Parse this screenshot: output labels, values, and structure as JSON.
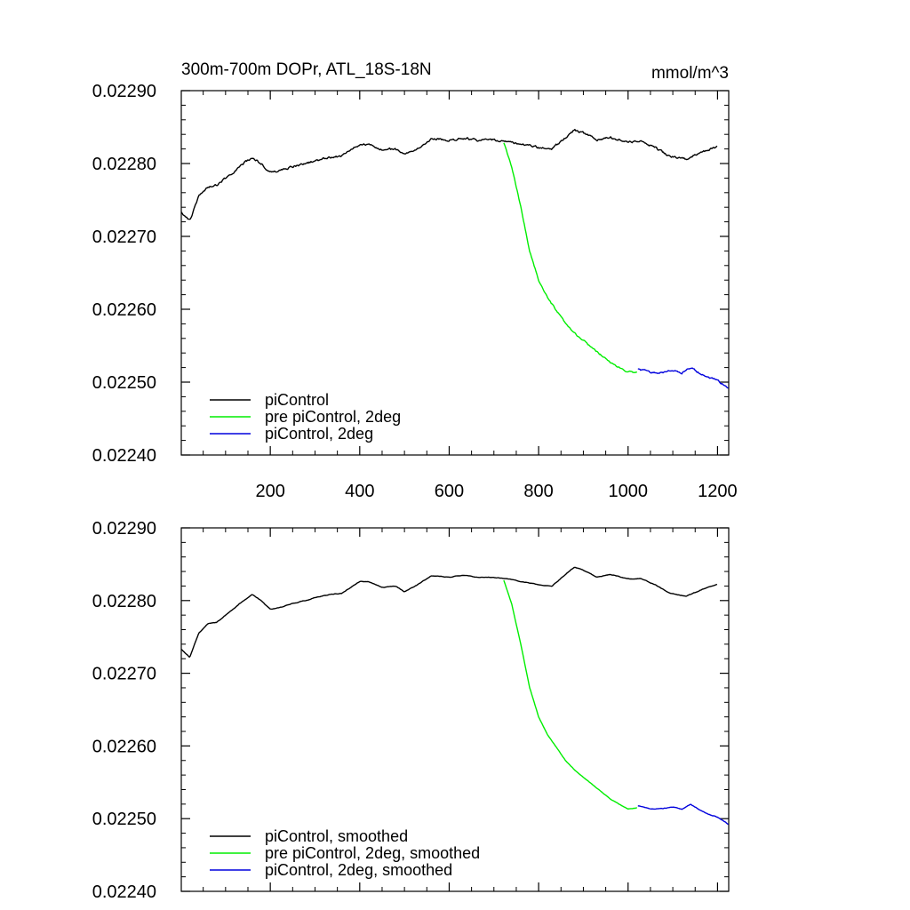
{
  "chart_data": [
    {
      "type": "line",
      "title": "300m-700m DOPr, ATL_18S-18N",
      "units": "mmol/m^3",
      "xlim": [
        1,
        1225
      ],
      "ylim": [
        0.0224,
        0.0229
      ],
      "x_ticks": [
        200,
        400,
        600,
        800,
        1000,
        1200
      ],
      "x_tick_labels": [
        "200",
        "400",
        "600",
        "800",
        "1000",
        "1200"
      ],
      "y_ticks": [
        0.0224,
        0.0225,
        0.0226,
        0.0227,
        0.0228,
        0.0229
      ],
      "y_tick_labels": [
        "0.02240",
        "0.02250",
        "0.02260",
        "0.02270",
        "0.02280",
        "0.02290"
      ],
      "grid": false,
      "legend_position": "bottom-left",
      "series": [
        {
          "name": "piControl",
          "color": "#000000",
          "noise": 1.2e-06,
          "x": [
            1,
            20,
            40,
            60,
            80,
            100,
            120,
            140,
            160,
            180,
            200,
            220,
            250,
            280,
            300,
            330,
            360,
            400,
            420,
            450,
            480,
            500,
            530,
            560,
            600,
            630,
            660,
            700,
            730,
            760,
            800,
            830,
            860,
            880,
            900,
            930,
            960,
            1000,
            1030,
            1060,
            1090,
            1110,
            1130,
            1160,
            1200
          ],
          "y": [
            0.022733,
            0.022722,
            0.022755,
            0.022768,
            0.02277,
            0.02278,
            0.02279,
            0.0228,
            0.022808,
            0.0228,
            0.022788,
            0.02279,
            0.022796,
            0.0228,
            0.022804,
            0.022808,
            0.02281,
            0.022826,
            0.022826,
            0.022818,
            0.02282,
            0.022812,
            0.022822,
            0.022834,
            0.022832,
            0.022835,
            0.022832,
            0.022832,
            0.02283,
            0.022826,
            0.022822,
            0.02282,
            0.022836,
            0.022846,
            0.022842,
            0.022832,
            0.022836,
            0.02283,
            0.02283,
            0.022822,
            0.022811,
            0.022808,
            0.022806,
            0.022814,
            0.022823
          ]
        },
        {
          "name": "pre piControl, 2deg",
          "color": "#00ee00",
          "noise": 9e-07,
          "x": [
            722,
            740,
            760,
            780,
            800,
            820,
            840,
            860,
            880,
            900,
            920,
            940,
            960,
            980,
            1000,
            1020
          ],
          "y": [
            0.022828,
            0.022795,
            0.02274,
            0.02268,
            0.02264,
            0.022615,
            0.022598,
            0.02258,
            0.022567,
            0.022557,
            0.022547,
            0.022537,
            0.022527,
            0.02252,
            0.022513,
            0.022515
          ]
        },
        {
          "name": "piControl, 2deg",
          "color": "#0000dd",
          "noise": 1e-06,
          "x": [
            1022,
            1040,
            1060,
            1080,
            1100,
            1120,
            1140,
            1160,
            1180,
            1200,
            1225
          ],
          "y": [
            0.022518,
            0.022515,
            0.022513,
            0.022514,
            0.022516,
            0.022513,
            0.02252,
            0.022512,
            0.022506,
            0.022502,
            0.022492
          ]
        }
      ]
    },
    {
      "type": "line",
      "xlim": [
        1,
        1225
      ],
      "ylim": [
        0.0224,
        0.0229
      ],
      "x_ticks": [
        200,
        400,
        600,
        800,
        1000,
        1200
      ],
      "y_ticks": [
        0.0224,
        0.0225,
        0.0226,
        0.0227,
        0.0228,
        0.0229
      ],
      "y_tick_labels": [
        "0.02240",
        "0.02250",
        "0.02260",
        "0.02270",
        "0.02280",
        "0.02290"
      ],
      "grid": false,
      "legend_position": "bottom-left",
      "series": [
        {
          "name": "piControl, smoothed",
          "color": "#000000",
          "noise": 3e-07,
          "x": [
            1,
            20,
            40,
            60,
            80,
            100,
            120,
            140,
            160,
            180,
            200,
            220,
            250,
            280,
            300,
            330,
            360,
            400,
            420,
            450,
            480,
            500,
            530,
            560,
            600,
            630,
            660,
            700,
            730,
            760,
            800,
            830,
            860,
            880,
            900,
            930,
            960,
            1000,
            1030,
            1060,
            1090,
            1110,
            1130,
            1160,
            1200
          ],
          "y": [
            0.022733,
            0.022722,
            0.022755,
            0.022768,
            0.02277,
            0.02278,
            0.02279,
            0.0228,
            0.022808,
            0.0228,
            0.022788,
            0.02279,
            0.022796,
            0.0228,
            0.022804,
            0.022808,
            0.02281,
            0.022826,
            0.022826,
            0.022818,
            0.02282,
            0.022812,
            0.022822,
            0.022834,
            0.022832,
            0.022835,
            0.022832,
            0.022832,
            0.02283,
            0.022826,
            0.022822,
            0.02282,
            0.022836,
            0.022846,
            0.022842,
            0.022832,
            0.022836,
            0.02283,
            0.02283,
            0.022822,
            0.022811,
            0.022808,
            0.022806,
            0.022814,
            0.022823
          ]
        },
        {
          "name": "pre piControl, 2deg, smoothed",
          "color": "#00ee00",
          "noise": 2e-07,
          "x": [
            722,
            740,
            760,
            780,
            800,
            820,
            840,
            860,
            880,
            900,
            920,
            940,
            960,
            980,
            1000,
            1020
          ],
          "y": [
            0.022828,
            0.022795,
            0.02274,
            0.02268,
            0.02264,
            0.022615,
            0.022598,
            0.02258,
            0.022567,
            0.022557,
            0.022547,
            0.022537,
            0.022527,
            0.02252,
            0.022513,
            0.022515
          ]
        },
        {
          "name": "piControl, 2deg, smoothed",
          "color": "#0000dd",
          "noise": 3e-07,
          "x": [
            1022,
            1040,
            1060,
            1080,
            1100,
            1120,
            1140,
            1160,
            1180,
            1200,
            1225
          ],
          "y": [
            0.022518,
            0.022515,
            0.022513,
            0.022514,
            0.022516,
            0.022513,
            0.02252,
            0.022512,
            0.022506,
            0.022502,
            0.022492
          ]
        }
      ]
    }
  ]
}
